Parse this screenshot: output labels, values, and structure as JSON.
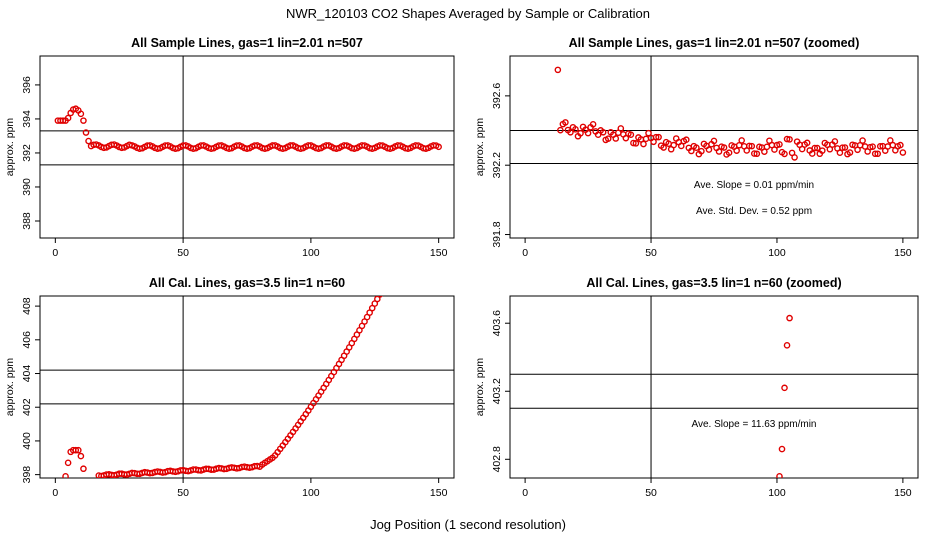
{
  "figure": {
    "title": "NWR_120103  CO2 Shapes Averaged by Sample or Calibration",
    "xlabel": "Jog Position (1 second resolution)",
    "colors": {
      "points": "#e00000",
      "axes": "#000000",
      "background": "#ffffff"
    }
  },
  "chart_data": [
    {
      "id": "sample-full",
      "type": "scatter",
      "title": "All Sample Lines, gas=1 lin=2.01 n=507",
      "ylabel": "approx. ppm",
      "xlim": [
        -6,
        156
      ],
      "ylim": [
        387,
        397.7
      ],
      "xticks": [
        0,
        50,
        100,
        150
      ],
      "yticks": [
        388,
        390,
        392,
        394,
        396
      ],
      "hlines": [
        393.3,
        391.3
      ],
      "vlines": [
        50
      ],
      "notes": [],
      "series": [
        {
          "name": "sample",
          "x": [],
          "y": []
        }
      ]
    },
    {
      "id": "sample-zoom",
      "type": "scatter",
      "title": "All Sample Lines, gas=1 lin=2.01 n=507 (zoomed)",
      "ylabel": "approx. ppm",
      "xlim": [
        -6,
        156
      ],
      "ylim": [
        391.78,
        392.83
      ],
      "xticks": [
        0,
        50,
        100,
        150
      ],
      "yticks": [
        391.8,
        392.2,
        392.6
      ],
      "hlines": [
        392.4,
        392.21
      ],
      "vlines": [
        50
      ],
      "notes": [
        "Ave. Slope =  0.01  ppm/min",
        "Ave. Std. Dev. =  0.52  ppm"
      ],
      "series": [
        {
          "name": "sample",
          "x": [],
          "y": []
        }
      ]
    },
    {
      "id": "cal-full",
      "type": "scatter",
      "title": "All Cal. Lines, gas=3.5 lin=1 n=60",
      "ylabel": "approx. ppm",
      "xlim": [
        -6,
        156
      ],
      "ylim": [
        397.8,
        408.6
      ],
      "xticks": [
        0,
        50,
        100,
        150
      ],
      "yticks": [
        398,
        400,
        402,
        404,
        406,
        408
      ],
      "hlines": [
        404.2,
        402.2
      ],
      "vlines": [
        50
      ],
      "notes": [],
      "series": [
        {
          "name": "calibration",
          "x": [],
          "y": []
        }
      ]
    },
    {
      "id": "cal-zoom",
      "type": "scatter",
      "title": "All Cal. Lines, gas=3.5 lin=1 n=60 (zoomed)",
      "ylabel": "approx. ppm",
      "xlim": [
        -6,
        156
      ],
      "ylim": [
        402.69,
        403.76
      ],
      "xticks": [
        0,
        50,
        100,
        150
      ],
      "yticks": [
        402.8,
        403.2,
        403.6
      ],
      "hlines": [
        403.3,
        403.1
      ],
      "vlines": [
        50
      ],
      "notes": [
        "Ave. Slope =  11.63  ppm/min"
      ],
      "series": [
        {
          "name": "calibration",
          "x": [
            101,
            102,
            103,
            104,
            105
          ],
          "y": [
            402.7,
            402.86,
            403.22,
            403.47,
            403.63
          ]
        }
      ]
    }
  ]
}
